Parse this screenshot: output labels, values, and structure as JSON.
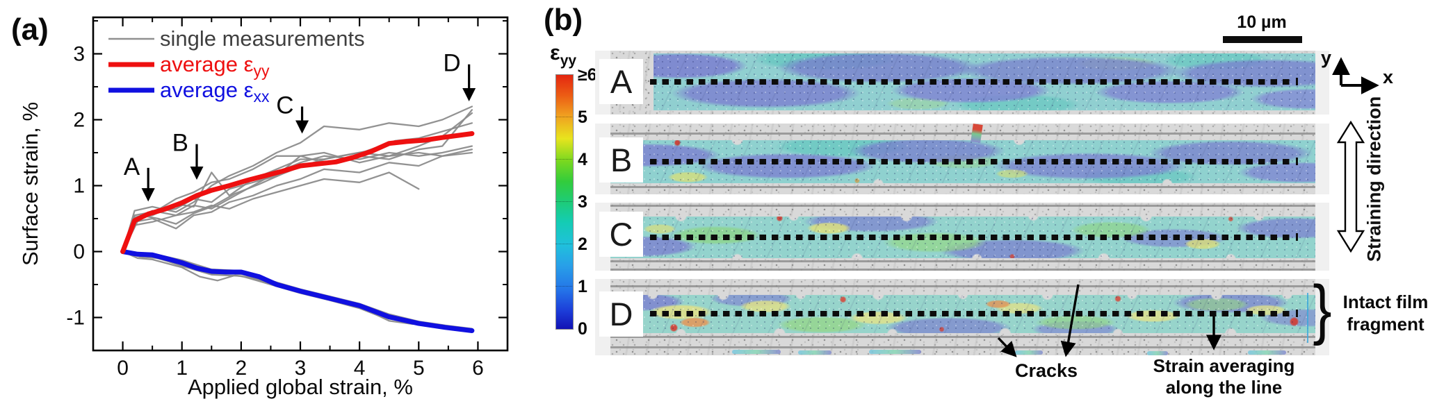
{
  "panel_a": {
    "label": "(a)",
    "chart_data": {
      "type": "line",
      "xlabel": "Applied global strain, %",
      "ylabel": "Surface strain, %",
      "xlim": [
        -0.5,
        6.5
      ],
      "ylim": [
        -1.5,
        3.553
      ],
      "xticks": [
        0,
        1,
        2,
        3,
        4,
        5,
        6
      ],
      "yticks": [
        -1,
        0,
        1,
        2,
        3
      ],
      "minor_step": 0.5,
      "grid": false,
      "legend_position": "top-left",
      "legend": [
        {
          "label": "single measurements",
          "sub": "",
          "color": "#909090",
          "text_color": "#3f3f3f",
          "lw": 2.6
        },
        {
          "label": "average ε",
          "sub": "yy",
          "color": "#ee1010",
          "text_color": "#ee1010",
          "lw": 7
        },
        {
          "label": "average ε",
          "sub": "xx",
          "color": "#1010e0",
          "text_color": "#1010e0",
          "lw": 7
        }
      ],
      "series": [
        {
          "name": "average εyy",
          "color": "#ee1010",
          "width": 7,
          "points": [
            [
              0,
              0
            ],
            [
              0.2,
              0.47
            ],
            [
              0.43,
              0.57
            ],
            [
              0.7,
              0.64
            ],
            [
              1.0,
              0.74
            ],
            [
              1.25,
              0.85
            ],
            [
              1.5,
              0.93
            ],
            [
              1.8,
              1.0
            ],
            [
              2.1,
              1.08
            ],
            [
              2.4,
              1.15
            ],
            [
              2.7,
              1.22
            ],
            [
              3.0,
              1.3
            ],
            [
              3.3,
              1.33
            ],
            [
              3.6,
              1.36
            ],
            [
              3.9,
              1.43
            ],
            [
              4.2,
              1.52
            ],
            [
              4.5,
              1.64
            ],
            [
              4.8,
              1.67
            ],
            [
              5.1,
              1.69
            ],
            [
              5.4,
              1.73
            ],
            [
              5.9,
              1.79
            ]
          ]
        },
        {
          "name": "average εxx",
          "color": "#1010e0",
          "width": 7,
          "points": [
            [
              0,
              0
            ],
            [
              0.25,
              -0.04
            ],
            [
              0.5,
              -0.05
            ],
            [
              0.8,
              -0.12
            ],
            [
              1.0,
              -0.17
            ],
            [
              1.25,
              -0.25
            ],
            [
              1.5,
              -0.3
            ],
            [
              1.75,
              -0.31
            ],
            [
              2.0,
              -0.31
            ],
            [
              2.3,
              -0.38
            ],
            [
              2.6,
              -0.5
            ],
            [
              3.0,
              -0.6
            ],
            [
              3.5,
              -0.71
            ],
            [
              4.0,
              -0.82
            ],
            [
              4.5,
              -0.99
            ],
            [
              5.0,
              -1.09
            ],
            [
              5.45,
              -1.15
            ],
            [
              5.9,
              -1.2
            ]
          ]
        }
      ],
      "gray_series": [
        {
          "points": [
            [
              0,
              0
            ],
            [
              0.2,
              0.62
            ],
            [
              0.5,
              0.68
            ],
            [
              0.9,
              0.6
            ],
            [
              1.2,
              0.75
            ],
            [
              1.5,
              1.0
            ],
            [
              1.8,
              1.15
            ],
            [
              2.2,
              1.3
            ],
            [
              2.6,
              1.5
            ],
            [
              3.0,
              1.65
            ],
            [
              3.4,
              1.9
            ],
            [
              4.0,
              1.85
            ],
            [
              4.5,
              1.95
            ],
            [
              5.0,
              1.9
            ],
            [
              5.4,
              2.0
            ],
            [
              5.9,
              2.2
            ]
          ]
        },
        {
          "points": [
            [
              0,
              0
            ],
            [
              0.2,
              0.5
            ],
            [
              0.5,
              0.55
            ],
            [
              0.9,
              0.72
            ],
            [
              1.2,
              0.68
            ],
            [
              1.5,
              1.2
            ],
            [
              1.8,
              0.85
            ],
            [
              2.2,
              1.1
            ],
            [
              2.6,
              1.25
            ],
            [
              3.0,
              1.4
            ],
            [
              3.4,
              1.4
            ],
            [
              4.0,
              1.5
            ],
            [
              4.5,
              1.45
            ],
            [
              5.0,
              1.6
            ],
            [
              5.4,
              1.75
            ],
            [
              5.9,
              2.1
            ]
          ]
        },
        {
          "points": [
            [
              0,
              0
            ],
            [
              0.2,
              0.45
            ],
            [
              0.5,
              0.5
            ],
            [
              0.9,
              0.35
            ],
            [
              1.2,
              0.55
            ],
            [
              1.5,
              0.6
            ],
            [
              1.8,
              0.75
            ],
            [
              2.2,
              0.85
            ],
            [
              2.6,
              1.0
            ],
            [
              3.0,
              1.1
            ],
            [
              3.4,
              1.25
            ],
            [
              4.0,
              1.2
            ],
            [
              4.5,
              1.35
            ],
            [
              5.0,
              1.3
            ],
            [
              5.4,
              1.45
            ],
            [
              5.9,
              1.55
            ]
          ]
        },
        {
          "points": [
            [
              0,
              0
            ],
            [
              0.2,
              0.55
            ],
            [
              0.5,
              0.6
            ],
            [
              0.9,
              0.65
            ],
            [
              1.2,
              0.8
            ],
            [
              1.5,
              0.75
            ],
            [
              1.8,
              0.95
            ],
            [
              2.2,
              1.05
            ],
            [
              2.6,
              1.15
            ],
            [
              3.0,
              1.45
            ],
            [
              3.4,
              1.35
            ],
            [
              4.0,
              1.45
            ],
            [
              4.5,
              1.4
            ],
            [
              5.0,
              1.55
            ],
            [
              5.4,
              1.6
            ],
            [
              5.9,
              2.15
            ]
          ]
        },
        {
          "points": [
            [
              0,
              0
            ],
            [
              0.2,
              0.48
            ],
            [
              0.5,
              0.62
            ],
            [
              0.9,
              0.55
            ],
            [
              1.2,
              0.7
            ],
            [
              1.5,
              0.65
            ],
            [
              1.8,
              0.8
            ],
            [
              2.2,
              1.0
            ],
            [
              2.6,
              1.2
            ],
            [
              3.0,
              1.35
            ],
            [
              3.4,
              1.45
            ],
            [
              4.0,
              1.4
            ],
            [
              4.5,
              1.5
            ],
            [
              5.0,
              1.45
            ],
            [
              5.4,
              1.5
            ],
            [
              5.9,
              1.6
            ]
          ]
        },
        {
          "points": [
            [
              0,
              0
            ],
            [
              0.2,
              0.4
            ],
            [
              0.5,
              0.45
            ],
            [
              0.9,
              0.55
            ],
            [
              1.2,
              0.6
            ],
            [
              1.5,
              0.7
            ],
            [
              1.8,
              0.65
            ],
            [
              2.2,
              0.8
            ],
            [
              2.6,
              0.9
            ],
            [
              3.0,
              1.0
            ],
            [
              3.4,
              1.1
            ],
            [
              4.0,
              1.05
            ],
            [
              4.5,
              1.2
            ],
            [
              5.0,
              0.95
            ]
          ]
        },
        {
          "points": [
            [
              0,
              0
            ],
            [
              0.2,
              0.52
            ],
            [
              0.5,
              0.58
            ],
            [
              0.9,
              0.8
            ],
            [
              1.2,
              0.9
            ],
            [
              1.5,
              1.05
            ],
            [
              1.8,
              1.1
            ],
            [
              2.2,
              1.25
            ],
            [
              2.6,
              1.45
            ],
            [
              3.0,
              1.45
            ],
            [
              3.4,
              1.5
            ],
            [
              4.0,
              1.35
            ],
            [
              4.5,
              1.45
            ],
            [
              5.0,
              1.5
            ],
            [
              5.4,
              1.45
            ],
            [
              5.9,
              1.5
            ]
          ]
        },
        {
          "points": [
            [
              0,
              0
            ],
            [
              0.3,
              0.55
            ],
            [
              0.6,
              0.5
            ],
            [
              0.9,
              0.42
            ],
            [
              1.2,
              0.58
            ],
            [
              1.5,
              0.68
            ],
            [
              1.9,
              0.88
            ],
            [
              2.3,
              1.02
            ],
            [
              2.7,
              1.18
            ],
            [
              3.1,
              1.32
            ],
            [
              3.5,
              1.42
            ],
            [
              4.1,
              1.52
            ],
            [
              4.6,
              1.68
            ],
            [
              5.0,
              1.72
            ],
            [
              5.9,
              1.95
            ]
          ]
        },
        {
          "points": [
            [
              0,
              0
            ],
            [
              0.25,
              -0.06
            ],
            [
              0.5,
              -0.08
            ],
            [
              1.0,
              -0.2
            ],
            [
              1.5,
              -0.33
            ],
            [
              2.0,
              -0.34
            ],
            [
              2.5,
              -0.47
            ],
            [
              3.0,
              -0.62
            ],
            [
              3.5,
              -0.73
            ],
            [
              4.0,
              -0.85
            ],
            [
              4.5,
              -1.02
            ],
            [
              4.9,
              -1.07
            ]
          ]
        },
        {
          "points": [
            [
              0,
              0
            ],
            [
              0.25,
              -0.1
            ],
            [
              0.5,
              -0.12
            ],
            [
              1.0,
              -0.24
            ],
            [
              1.3,
              -0.38
            ],
            [
              1.6,
              -0.44
            ],
            [
              1.9,
              -0.36
            ],
            [
              2.3,
              -0.42
            ],
            [
              2.7,
              -0.55
            ],
            [
              3.1,
              -0.65
            ],
            [
              3.6,
              -0.75
            ],
            [
              4.1,
              -0.88
            ],
            [
              4.5,
              -1.05
            ],
            [
              4.9,
              -1.1
            ]
          ]
        },
        {
          "points": [
            [
              0,
              0
            ],
            [
              0.25,
              -0.02
            ],
            [
              0.5,
              -0.03
            ],
            [
              1.0,
              -0.13
            ],
            [
              1.5,
              -0.27
            ],
            [
              2.0,
              -0.29
            ],
            [
              2.5,
              -0.44
            ],
            [
              3.0,
              -0.57
            ],
            [
              3.5,
              -0.68
            ],
            [
              4.0,
              -0.79
            ],
            [
              4.5,
              -0.95
            ],
            [
              5.0,
              -1.06
            ],
            [
              5.45,
              -1.12
            ],
            [
              5.9,
              -1.17
            ]
          ]
        },
        {
          "points": [
            [
              0,
              0
            ],
            [
              0.25,
              -0.05
            ],
            [
              0.5,
              -0.07
            ],
            [
              1.0,
              -0.18
            ],
            [
              1.5,
              -0.31
            ],
            [
              2.0,
              -0.33
            ],
            [
              2.5,
              -0.49
            ],
            [
              3.0,
              -0.61
            ],
            [
              3.5,
              -0.72
            ],
            [
              4.0,
              -0.83
            ],
            [
              4.5,
              -1.0
            ],
            [
              5.0,
              -1.1
            ],
            [
              5.9,
              -1.22
            ]
          ]
        },
        {
          "points": [
            [
              0,
              0
            ],
            [
              0.3,
              -0.08
            ],
            [
              0.6,
              -0.1
            ],
            [
              1.0,
              -0.22
            ],
            [
              1.5,
              -0.35
            ],
            [
              2.0,
              -0.37
            ],
            [
              2.5,
              -0.5
            ],
            [
              3.0,
              -0.63
            ],
            [
              3.5,
              -0.74
            ],
            [
              4.0,
              -0.86
            ],
            [
              4.4,
              -1.0
            ],
            [
              4.8,
              -1.05
            ]
          ]
        }
      ],
      "annotations": [
        {
          "label": "A",
          "x": 0.43,
          "y_from": 1.27,
          "y_to": 0.82
        },
        {
          "label": "B",
          "x": 1.25,
          "y_from": 1.63,
          "y_to": 1.15
        },
        {
          "label": "C",
          "x": 3.03,
          "y_from": 2.2,
          "y_to": 1.85
        },
        {
          "label": "D",
          "x": 5.85,
          "y_from": 2.84,
          "y_to": 2.34
        }
      ]
    }
  },
  "panel_b": {
    "label": "(b)",
    "colorbar": {
      "title": "ε",
      "title_sub": "yy",
      "ticks": [
        "≥6",
        "5",
        "4",
        "3",
        "2",
        "1",
        "0"
      ]
    },
    "strips": [
      {
        "label": "A"
      },
      {
        "label": "B"
      },
      {
        "label": "C"
      },
      {
        "label": "D"
      }
    ],
    "scalebar": {
      "label": "10 µm"
    },
    "axes": {
      "x": "x",
      "y": "y"
    },
    "annotations": {
      "straining_direction": "Straining direction",
      "intact_line1": "Intact film",
      "intact_line2": "fragment",
      "cracks": "Cracks",
      "strain_avg_line1": "Strain averaging",
      "strain_avg_line2": "along the line",
      "brace": "}"
    }
  }
}
